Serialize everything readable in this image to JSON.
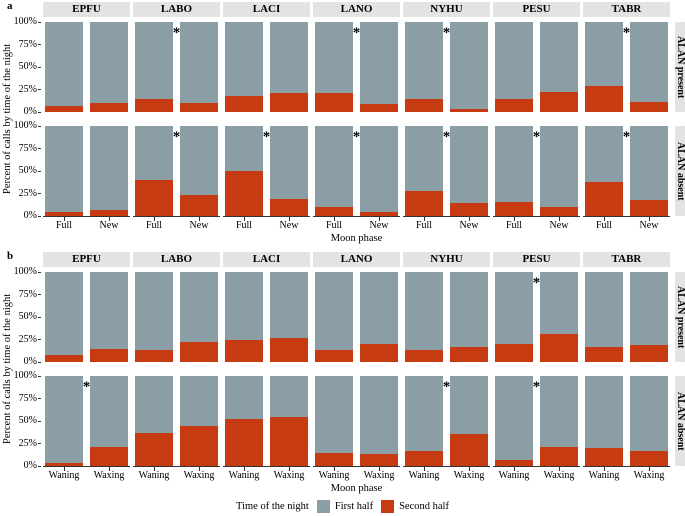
{
  "colors": {
    "first_half": "#8b9ea6",
    "second_half": "#c63b11",
    "strip_bg": "#e3e3e3",
    "axis": "#333333"
  },
  "significance_marker": "*",
  "legend": {
    "title": "Time of the night",
    "items": [
      {
        "label": "First half",
        "color": "#8b9ea6"
      },
      {
        "label": "Second half",
        "color": "#c63b11"
      }
    ]
  },
  "chart_data": [
    {
      "type": "bar",
      "stacked": "percent",
      "panel": "a",
      "ylabel": "Percent of calls by time of the night",
      "xlabel": "Moon phase",
      "yticks": [
        "100%",
        "75%",
        "50%",
        "25%",
        "0%"
      ],
      "ylim": [
        0,
        100
      ],
      "grid": false,
      "species": [
        "EPFU",
        "LABO",
        "LACI",
        "LANO",
        "NYHU",
        "PESU",
        "TABR"
      ],
      "categories": [
        "Full",
        "New"
      ],
      "rows": [
        {
          "label": "ALAN present",
          "second_half_pct": [
            [
              7,
              10
            ],
            [
              14,
              10
            ],
            [
              18,
              21
            ],
            [
              21,
              9
            ],
            [
              14,
              3
            ],
            [
              15,
              22
            ],
            [
              29,
              11
            ]
          ],
          "significant": [
            false,
            true,
            false,
            true,
            true,
            false,
            true
          ]
        },
        {
          "label": "ALAN absent",
          "second_half_pct": [
            [
              5,
              7
            ],
            [
              40,
              23
            ],
            [
              50,
              19
            ],
            [
              10,
              4
            ],
            [
              28,
              14
            ],
            [
              16,
              10
            ],
            [
              38,
              18
            ]
          ],
          "significant": [
            false,
            true,
            true,
            true,
            true,
            true,
            true
          ]
        }
      ]
    },
    {
      "type": "bar",
      "stacked": "percent",
      "panel": "b",
      "ylabel": "Percent of calls by time of the night",
      "xlabel": "Moon phase",
      "yticks": [
        "100%",
        "75%",
        "50%",
        "25%",
        "0%"
      ],
      "ylim": [
        0,
        100
      ],
      "grid": false,
      "species": [
        "EPFU",
        "LABO",
        "LACI",
        "LANO",
        "NYHU",
        "PESU",
        "TABR"
      ],
      "categories": [
        "Waning",
        "Waxing"
      ],
      "rows": [
        {
          "label": "ALAN present",
          "second_half_pct": [
            [
              8,
              14
            ],
            [
              13,
              22
            ],
            [
              24,
              27
            ],
            [
              13,
              20
            ],
            [
              13,
              17
            ],
            [
              20,
              31
            ],
            [
              17,
              19
            ]
          ],
          "significant": [
            false,
            false,
            false,
            false,
            false,
            true,
            false
          ]
        },
        {
          "label": "ALAN absent",
          "second_half_pct": [
            [
              3,
              21
            ],
            [
              37,
              44
            ],
            [
              52,
              54
            ],
            [
              15,
              13
            ],
            [
              17,
              36
            ],
            [
              7,
              21
            ],
            [
              20,
              17
            ]
          ],
          "significant": [
            true,
            false,
            false,
            false,
            true,
            true,
            false
          ]
        }
      ]
    }
  ]
}
